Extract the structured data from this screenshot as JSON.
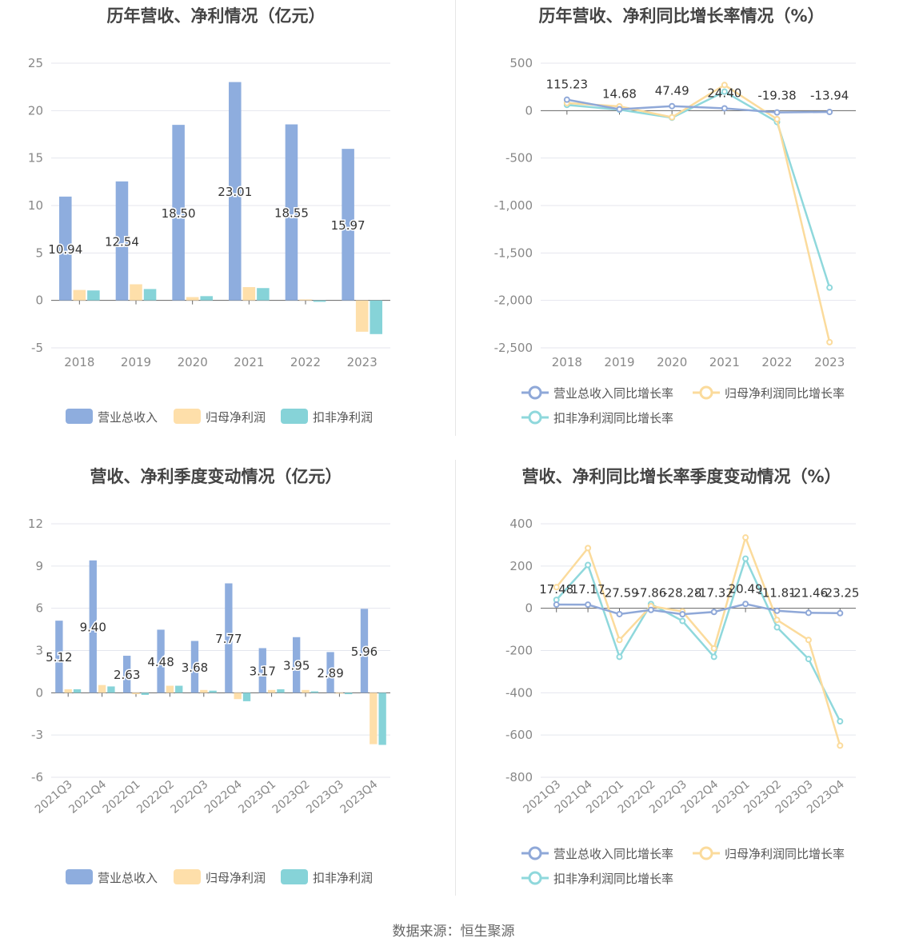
{
  "source_text": "数据来源：恒生聚源",
  "chart_data": [
    {
      "id": "annual-amounts",
      "type": "bar",
      "title": "历年营收、净利情况（亿元）",
      "categories": [
        "2018",
        "2019",
        "2020",
        "2021",
        "2022",
        "2023"
      ],
      "ylim": [
        -5,
        25
      ],
      "yticks": [
        -5,
        0,
        5,
        10,
        15,
        20,
        25
      ],
      "ytick_labels": [
        "-5",
        "0",
        "5",
        "10",
        "15",
        "20",
        "25"
      ],
      "grid": true,
      "legend_position": "bottom",
      "series": [
        {
          "name": "营业总收入",
          "color": "#8eadde",
          "values": [
            10.94,
            12.54,
            18.5,
            23.01,
            18.55,
            15.97
          ],
          "data_labels": [
            "10.94",
            "12.54",
            "18.50",
            "23.01",
            "18.55",
            "15.97"
          ]
        },
        {
          "name": "归母净利润",
          "color": "#fedfaa",
          "values": [
            1.1,
            1.7,
            0.35,
            1.4,
            0.1,
            -3.3
          ]
        },
        {
          "name": "扣非净利润",
          "color": "#86d3d8",
          "values": [
            1.05,
            1.2,
            0.45,
            1.3,
            -0.15,
            -3.55
          ]
        }
      ]
    },
    {
      "id": "annual-growth",
      "type": "line",
      "title": "历年营收、净利同比增长率情况（%）",
      "categories": [
        "2018",
        "2019",
        "2020",
        "2021",
        "2022",
        "2023"
      ],
      "ylim": [
        -2500,
        500
      ],
      "yticks": [
        -2500,
        -2000,
        -1500,
        -1000,
        -500,
        0,
        500
      ],
      "ytick_labels": [
        "-2,500",
        "-2,000",
        "-1,500",
        "-1,000",
        "-500",
        "0",
        "500"
      ],
      "grid": true,
      "legend_position": "bottom",
      "series": [
        {
          "name": "营业总收入同比增长率",
          "color": "#8fa8d8",
          "values": [
            115.23,
            14.68,
            47.49,
            24.4,
            -19.38,
            -13.94
          ],
          "data_labels": [
            "115.23",
            "14.68",
            "47.49",
            "24.40",
            "-19.38",
            "-13.94"
          ]
        },
        {
          "name": "归母净利润同比增长率",
          "color": "#fbdb9c",
          "values": [
            80,
            45,
            -70,
            270,
            -90,
            -2440
          ]
        },
        {
          "name": "扣非净利润同比增长率",
          "color": "#8fd8dc",
          "values": [
            60,
            10,
            -75,
            200,
            -120,
            -1865
          ]
        }
      ]
    },
    {
      "id": "quarterly-amounts",
      "type": "bar",
      "title": "营收、净利季度变动情况（亿元）",
      "categories": [
        "2021Q3",
        "2021Q4",
        "2022Q1",
        "2022Q2",
        "2022Q3",
        "2022Q4",
        "2023Q1",
        "2023Q2",
        "2023Q3",
        "2023Q4"
      ],
      "ylim": [
        -6,
        12
      ],
      "yticks": [
        -6,
        -3,
        0,
        3,
        6,
        9,
        12
      ],
      "ytick_labels": [
        "-6",
        "-3",
        "0",
        "3",
        "6",
        "9",
        "12"
      ],
      "grid": true,
      "legend_position": "bottom",
      "series": [
        {
          "name": "营业总收入",
          "color": "#8eadde",
          "values": [
            5.12,
            9.4,
            2.63,
            4.48,
            3.68,
            7.77,
            3.17,
            3.95,
            2.89,
            5.96
          ],
          "data_labels": [
            "5.12",
            "9.40",
            "2.63",
            "4.48",
            "3.68",
            "7.77",
            "3.17",
            "3.95",
            "2.89",
            "5.96"
          ]
        },
        {
          "name": "归母净利润",
          "color": "#fedfaa",
          "values": [
            0.25,
            0.55,
            -0.1,
            0.5,
            0.2,
            -0.45,
            0.2,
            0.2,
            -0.05,
            -3.65
          ]
        },
        {
          "name": "扣非净利润",
          "color": "#86d3d8",
          "values": [
            0.25,
            0.45,
            -0.15,
            0.5,
            0.15,
            -0.6,
            0.25,
            0.1,
            -0.1,
            -3.7
          ]
        }
      ]
    },
    {
      "id": "quarterly-growth",
      "type": "line",
      "title": "营收、净利同比增长率季度变动情况（%）",
      "categories": [
        "2021Q3",
        "2021Q4",
        "2022Q1",
        "2022Q2",
        "2022Q3",
        "2022Q4",
        "2023Q1",
        "2023Q2",
        "2023Q3",
        "2023Q4"
      ],
      "ylim": [
        -800,
        400
      ],
      "yticks": [
        -800,
        -600,
        -400,
        -200,
        0,
        200,
        400
      ],
      "ytick_labels": [
        "-800",
        "-600",
        "-400",
        "-200",
        "0",
        "200",
        "400"
      ],
      "grid": true,
      "legend_position": "bottom",
      "series": [
        {
          "name": "营业总收入同比增长率",
          "color": "#8fa8d8",
          "values": [
            17.48,
            17.17,
            -27.59,
            -7.86,
            -28.28,
            -17.32,
            20.49,
            -11.81,
            -21.46,
            -23.25
          ],
          "data_labels": [
            "17.48",
            "17.17",
            "-27.59",
            "-7.86",
            "-28.28",
            "-17.32",
            "20.49",
            "-11.81",
            "-21.46",
            "-23.25"
          ]
        },
        {
          "name": "归母净利润同比增长率",
          "color": "#fbdb9c",
          "values": [
            100,
            285,
            -150,
            10,
            -15,
            -190,
            335,
            -55,
            -150,
            -650
          ]
        },
        {
          "name": "扣非净利润同比增长率",
          "color": "#8fd8dc",
          "values": [
            40,
            205,
            -230,
            20,
            -60,
            -230,
            235,
            -90,
            -240,
            -535
          ]
        }
      ]
    }
  ]
}
